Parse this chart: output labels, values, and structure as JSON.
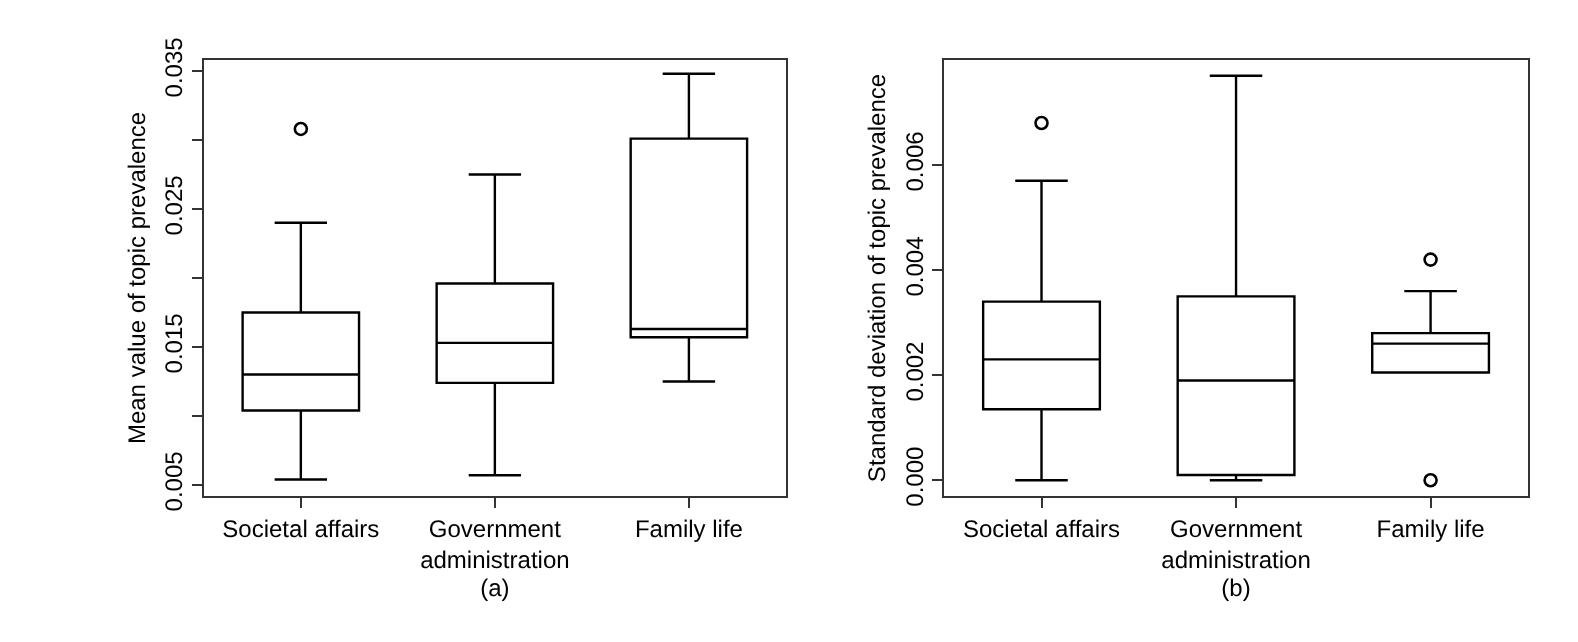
{
  "chart_data": [
    {
      "type": "box",
      "xlabel": "(a)",
      "ylabel": "Mean value of topic prevalence",
      "categories": [
        "Societal affairs",
        "Government administration",
        "Family life"
      ],
      "ylim": [
        0.0042,
        0.0358
      ],
      "yticks": [
        0.005,
        {
          "value": 0.01,
          "label": null
        },
        0.015,
        {
          "value": 0.02,
          "label": null
        },
        0.025,
        {
          "value": 0.03,
          "label": null
        },
        0.035
      ],
      "color": "#000000",
      "marker": "circle",
      "boxes": [
        {
          "low": 0.0054,
          "q1": 0.0104,
          "median": 0.013,
          "q3": 0.0175,
          "high": 0.024,
          "outliers": [
            0.0308
          ]
        },
        {
          "low": 0.0057,
          "q1": 0.0124,
          "median": 0.0153,
          "q3": 0.0196,
          "high": 0.0275
        },
        {
          "low": 0.0125,
          "q1": 0.0157,
          "median": 0.0163,
          "q3": 0.0301,
          "high": 0.0348
        }
      ]
    },
    {
      "type": "box",
      "xlabel": "(b)",
      "ylabel": "Standard deviation of topic prevalence",
      "categories": [
        "Societal affairs",
        "Government administration",
        "Family life"
      ],
      "ylim": [
        -0.0003,
        0.008
      ],
      "yticks": [
        {
          "value": 0.0,
          "label": "0.000"
        },
        0.002,
        0.004,
        0.006
      ],
      "color": "#000000",
      "marker": "circle",
      "boxes": [
        {
          "low": 0.0,
          "q1": 0.00135,
          "median": 0.0023,
          "q3": 0.0034,
          "high": 0.0057,
          "outliers": [
            0.0068
          ]
        },
        {
          "low": 0.0,
          "q1": 0.0001,
          "median": 0.0019,
          "q3": 0.0035,
          "high": 0.0077
        },
        {
          "low": 0.00205,
          "q1": 0.00205,
          "median": 0.0026,
          "q3": 0.0028,
          "high": 0.0036,
          "outliers": [
            0.0042,
            0.0
          ]
        }
      ]
    }
  ]
}
